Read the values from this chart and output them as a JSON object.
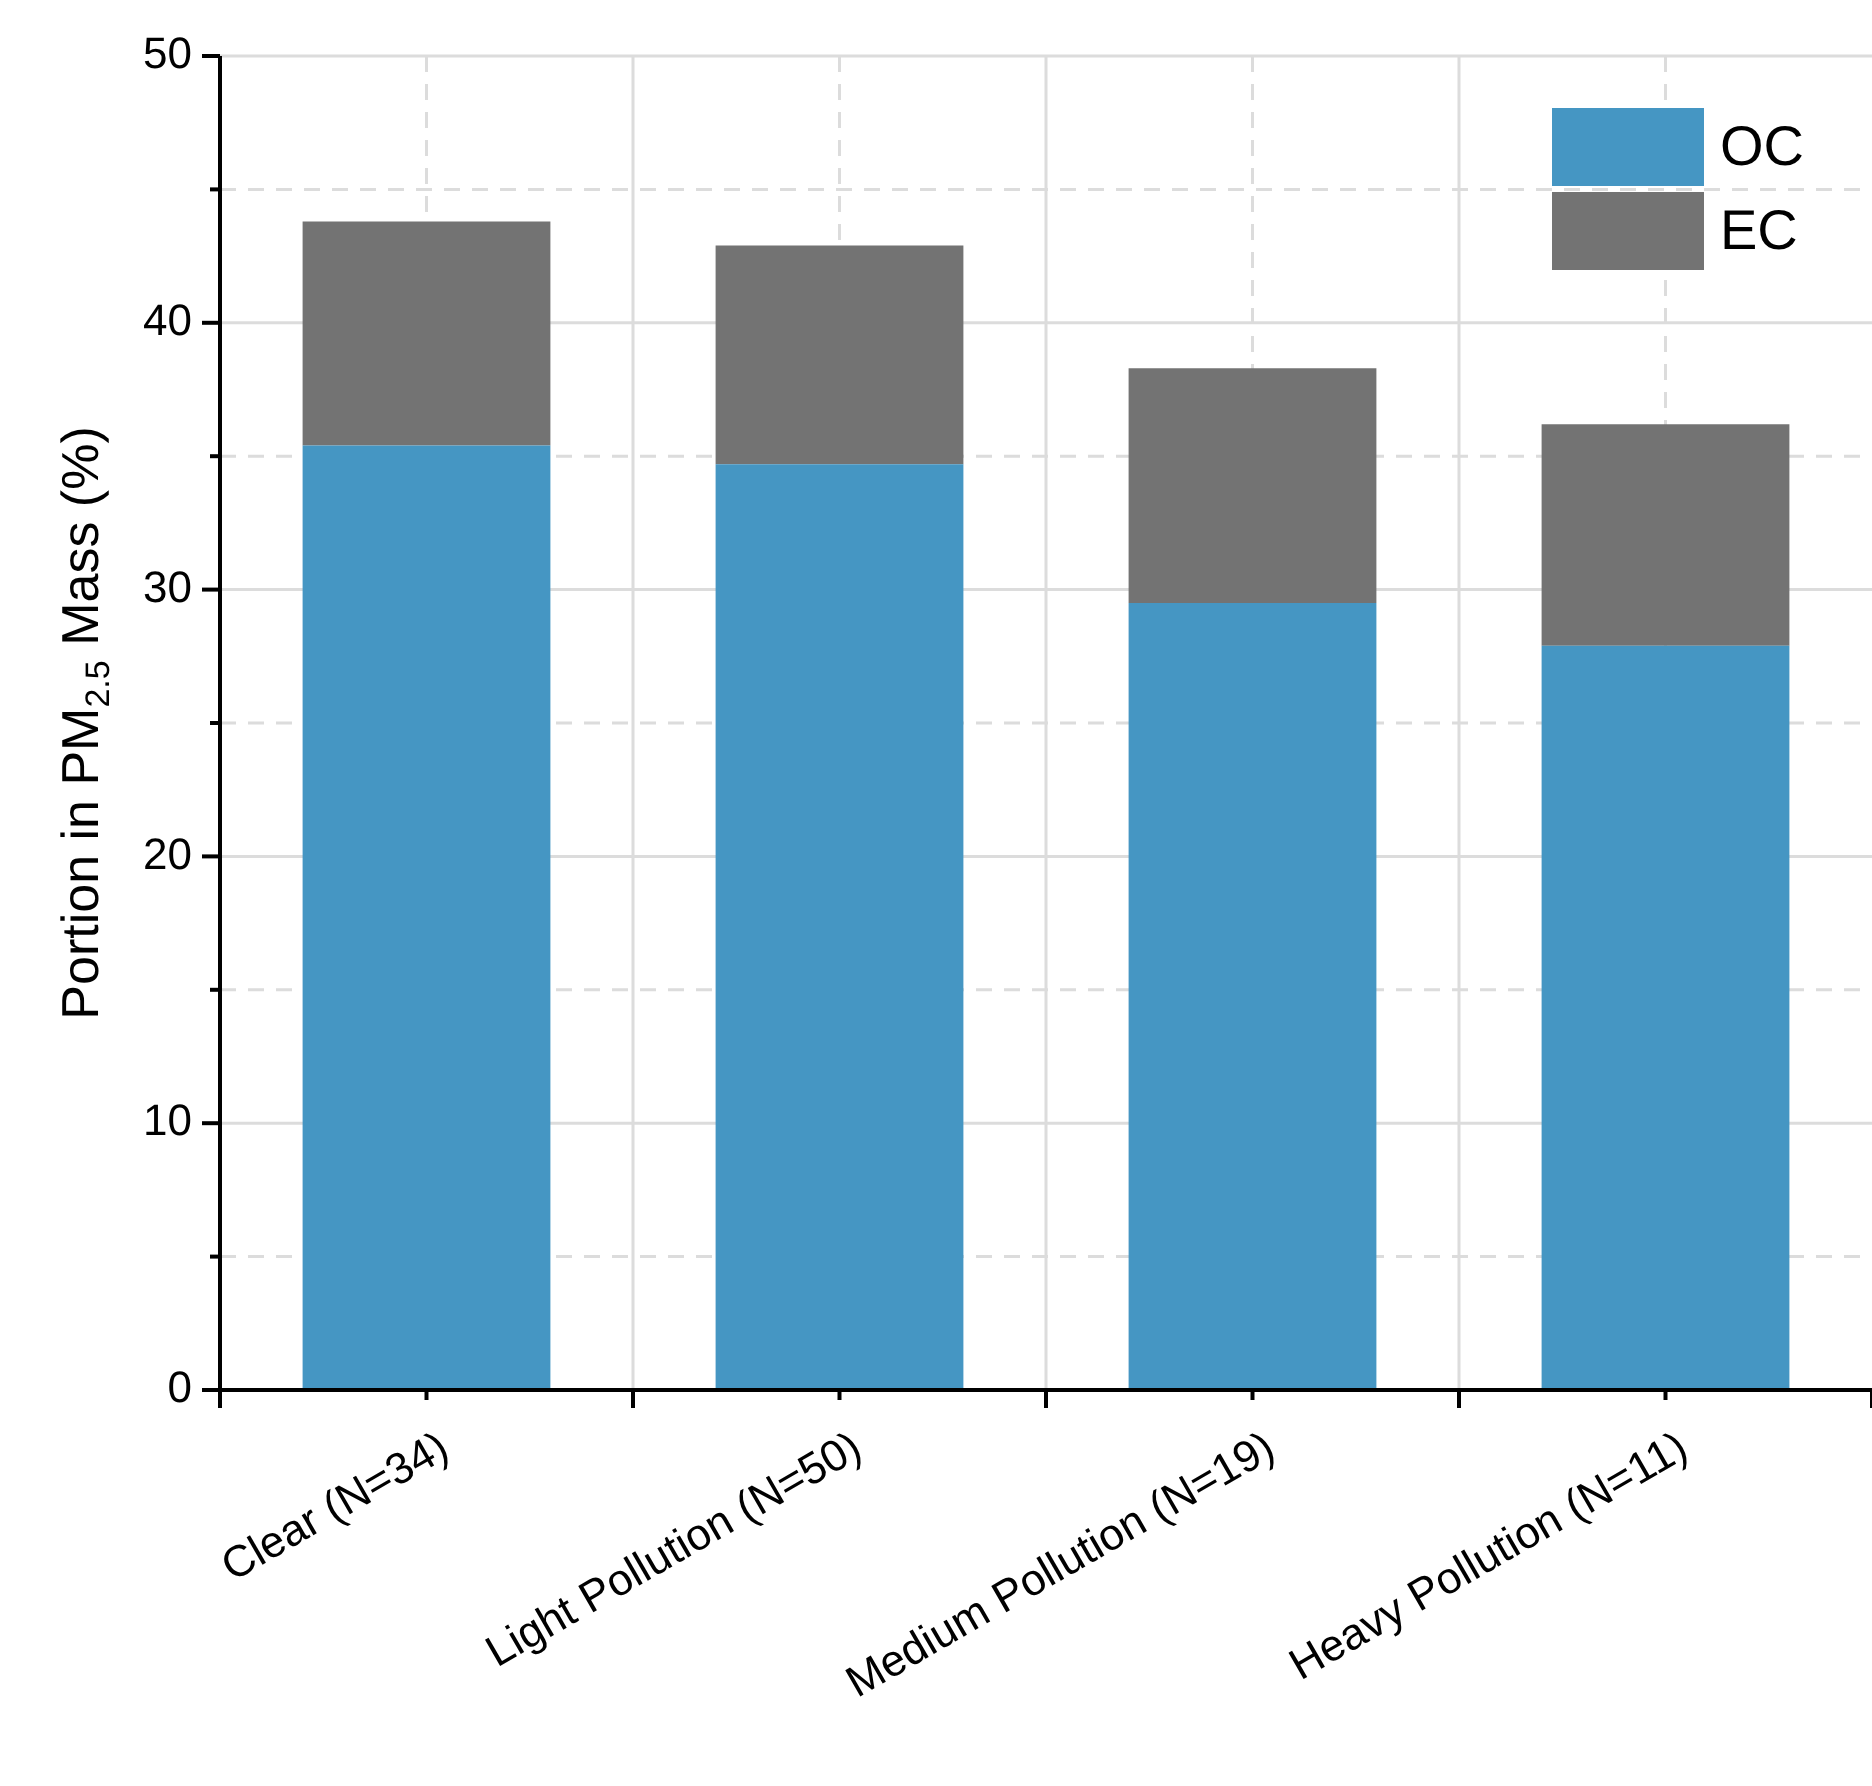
{
  "chart_data": {
    "type": "bar",
    "stacked": true,
    "ylabel": "Portion in PM$_{2.5}$ Mass (%)",
    "categories": [
      "Clear (N=34)",
      "Light Pollution (N=50)",
      "Medium Pollution (N=19)",
      "Heavy Pollution (N=11)"
    ],
    "series": [
      {
        "name": "OC",
        "color": "#4596c3",
        "values": [
          35.4,
          34.7,
          29.5,
          27.9
        ]
      },
      {
        "name": "EC",
        "color": "#737373",
        "values": [
          8.4,
          8.2,
          8.8,
          8.3
        ]
      }
    ],
    "ylim": [
      0,
      50
    ],
    "yticks": [
      0,
      {
        "value": 5,
        "label": null
      },
      10,
      {
        "value": 15,
        "label": null
      },
      20,
      {
        "value": 25,
        "label": null
      },
      30,
      {
        "value": 35,
        "label": null
      },
      40,
      {
        "value": 45,
        "label": null
      },
      50
    ],
    "grid": true,
    "legend": "top right"
  }
}
